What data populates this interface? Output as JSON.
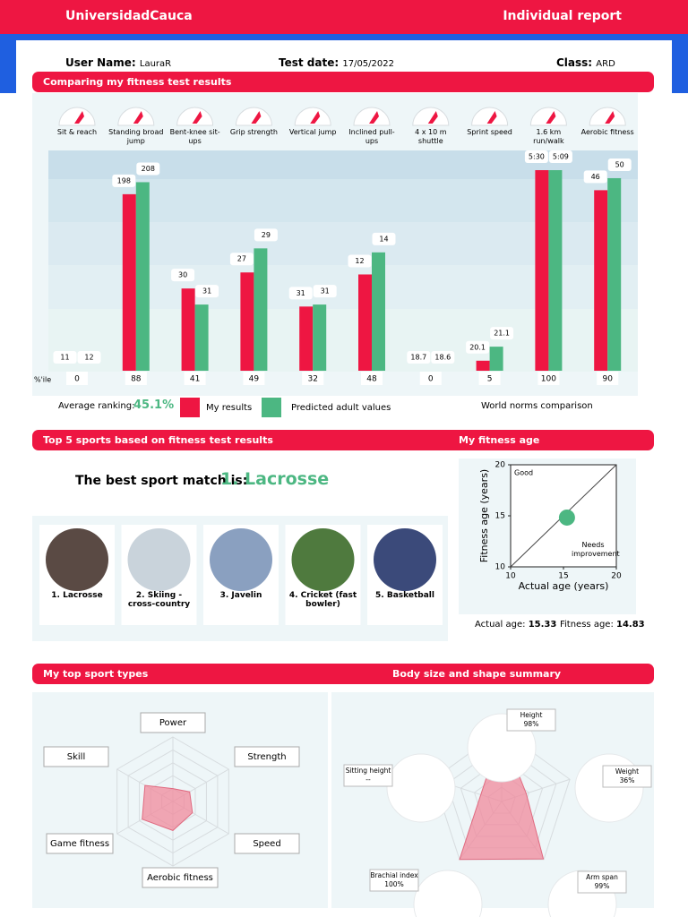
{
  "header": {
    "brand": "UniversidadCauca",
    "title": "Individual report"
  },
  "user": {
    "name_label": "User Name:",
    "name": "LauraR",
    "date_label": "Test date:",
    "date": "17/05/2022",
    "class_label": "Class:",
    "class": "ARD"
  },
  "sections": {
    "comparing": "Comparing my fitness test results",
    "top5": "Top 5 sports based on fitness test results",
    "fitness_age": "My fitness age",
    "sport_types": "My top sport types",
    "body": "Body size and shape summary"
  },
  "ranking": {
    "label": "Average ranking:",
    "value": "45.1%"
  },
  "world_norms": "World norms comparison",
  "sports": {
    "best_label": "The best sport match is:",
    "best": "1. Lacrosse",
    "list": [
      "1. Lacrosse",
      "2. Skiing - cross-country",
      "3. Javelin",
      "4. Cricket (fast bowler)",
      "5. Basketball"
    ]
  },
  "fitness_age_summary": {
    "actual_label": "Actual age:",
    "fitness_label": "Fitness age:"
  },
  "chart_data": [
    {
      "type": "bar",
      "categories": [
        "Sit & reach",
        "Standing broad jump",
        "Bent-knee sit-ups",
        "Grip strength",
        "Vertical jump",
        "Inclined pull-ups",
        "4 x 10 m shuttle",
        "Sprint speed",
        "1.6 km run/walk",
        "Aerobic fitness"
      ],
      "series": [
        {
          "name": "My results",
          "color": "#ee1642",
          "values": [
            0,
            88,
            41,
            49,
            32,
            48,
            0,
            5,
            100,
            90
          ],
          "results": [
            11,
            198,
            30,
            27,
            31,
            12,
            18.7,
            20.1,
            "5:30",
            46
          ]
        },
        {
          "name": "Predicted adult values",
          "color": "#4cb782",
          "values": [
            0,
            94,
            33,
            61,
            33,
            59,
            0,
            12,
            100,
            96
          ],
          "results": [
            12,
            208,
            31,
            29,
            31,
            14,
            18.6,
            21.1,
            "5:09",
            50
          ]
        }
      ],
      "ylim": [
        0,
        100
      ],
      "percentile_label": "%'ile"
    },
    {
      "type": "scatter",
      "x": [
        15.33
      ],
      "values": [
        14.83
      ],
      "color": "#4cb782",
      "xlim": [
        10,
        20
      ],
      "ylim": [
        10,
        20
      ],
      "xticks": [
        10,
        15,
        20
      ],
      "yticks": [
        10,
        15,
        20
      ],
      "xlabel": "Actual age (years)",
      "ylabel": "Fitness age (years)",
      "annotations": [
        "Good",
        "Needs improvement"
      ]
    },
    {
      "type": "radar",
      "categories": [
        "Power",
        "Strength",
        "Speed",
        "Aerobic fitness",
        "Game fitness",
        "Skill"
      ],
      "values": [
        20,
        30,
        35,
        45,
        55,
        50
      ],
      "color": "#f08a9c",
      "ylim": [
        0,
        100
      ]
    },
    {
      "type": "radar",
      "categories": [
        "Height",
        "Weight",
        "Arm span",
        "Brachial index",
        "Sitting height"
      ],
      "values": [
        98,
        36,
        99,
        100,
        null
      ],
      "value_labels": [
        "98%",
        "36%",
        "99%",
        "100%",
        "--"
      ],
      "color": "#f08a9c",
      "ylim": [
        0,
        100
      ]
    }
  ]
}
